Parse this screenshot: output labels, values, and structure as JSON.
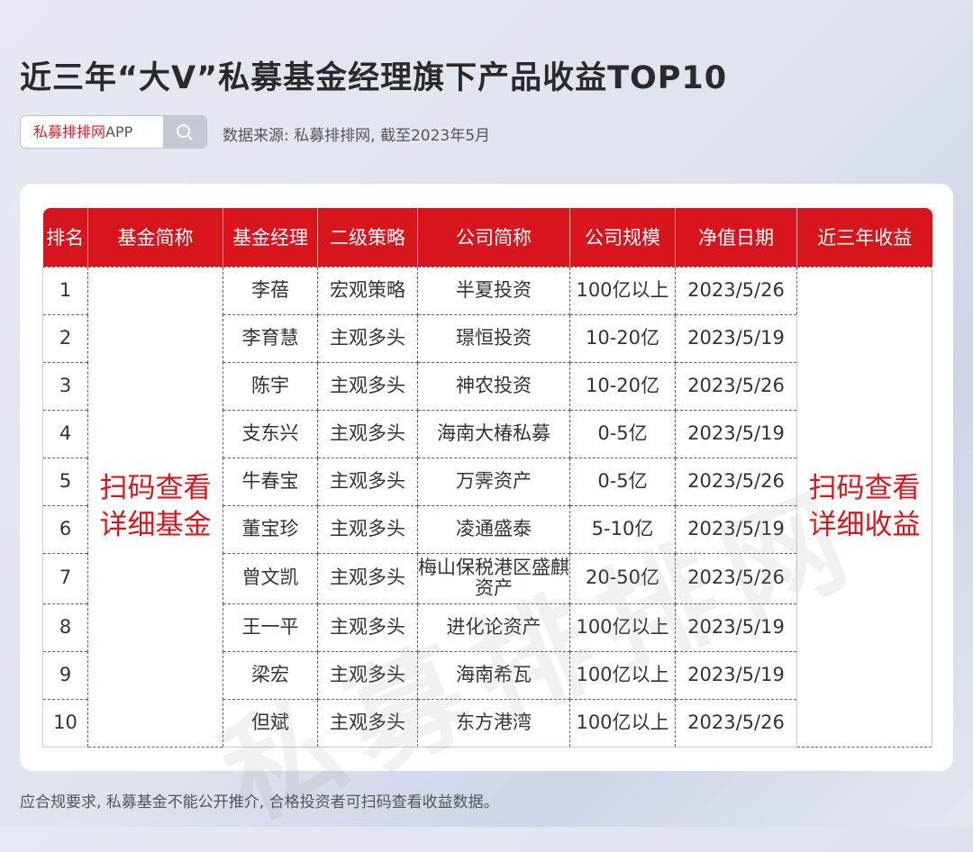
{
  "title": "近三年“大V”私募基金经理旗下产品收益TOP10",
  "search": {
    "brand": "私募排排网",
    "suffix": "APP",
    "icon": "search-icon"
  },
  "source": "数据来源: 私募排排网, 截至2023年5月",
  "watermark": "私募排排网",
  "colors": {
    "accent": "#d8151d"
  },
  "table": {
    "headers": [
      "排名",
      "基金简称",
      "基金经理",
      "二级策略",
      "公司简称",
      "公司规模",
      "净值日期",
      "近三年收益"
    ],
    "fund_note": "扫码查看详细基金",
    "return_note": "扫码查看详细收益",
    "rows": [
      [
        "1",
        "李蓓",
        "宏观策略",
        "半夏投资",
        "100亿以上",
        "2023/5/26"
      ],
      [
        "2",
        "李育慧",
        "主观多头",
        "璟恒投资",
        "10-20亿",
        "2023/5/19"
      ],
      [
        "3",
        "陈宇",
        "主观多头",
        "神农投资",
        "10-20亿",
        "2023/5/26"
      ],
      [
        "4",
        "支东兴",
        "主观多头",
        "海南大椿私募",
        "0-5亿",
        "2023/5/19"
      ],
      [
        "5",
        "牛春宝",
        "主观多头",
        "万霁资产",
        "0-5亿",
        "2023/5/26"
      ],
      [
        "6",
        "董宝珍",
        "主观多头",
        "凌通盛泰",
        "5-10亿",
        "2023/5/19"
      ],
      [
        "7",
        "曾文凯",
        "主观多头",
        "梅山保税港区盛麒资产",
        "20-50亿",
        "2023/5/26"
      ],
      [
        "8",
        "王一平",
        "主观多头",
        "进化论资产",
        "100亿以上",
        "2023/5/19"
      ],
      [
        "9",
        "梁宏",
        "主观多头",
        "海南希瓦",
        "100亿以上",
        "2023/5/19"
      ],
      [
        "10",
        "但斌",
        "主观多头",
        "东方港湾",
        "100亿以上",
        "2023/5/26"
      ]
    ]
  },
  "footer": "应合规要求, 私募基金不能公开推介, 合格投资者可扫码查看收益数据。"
}
